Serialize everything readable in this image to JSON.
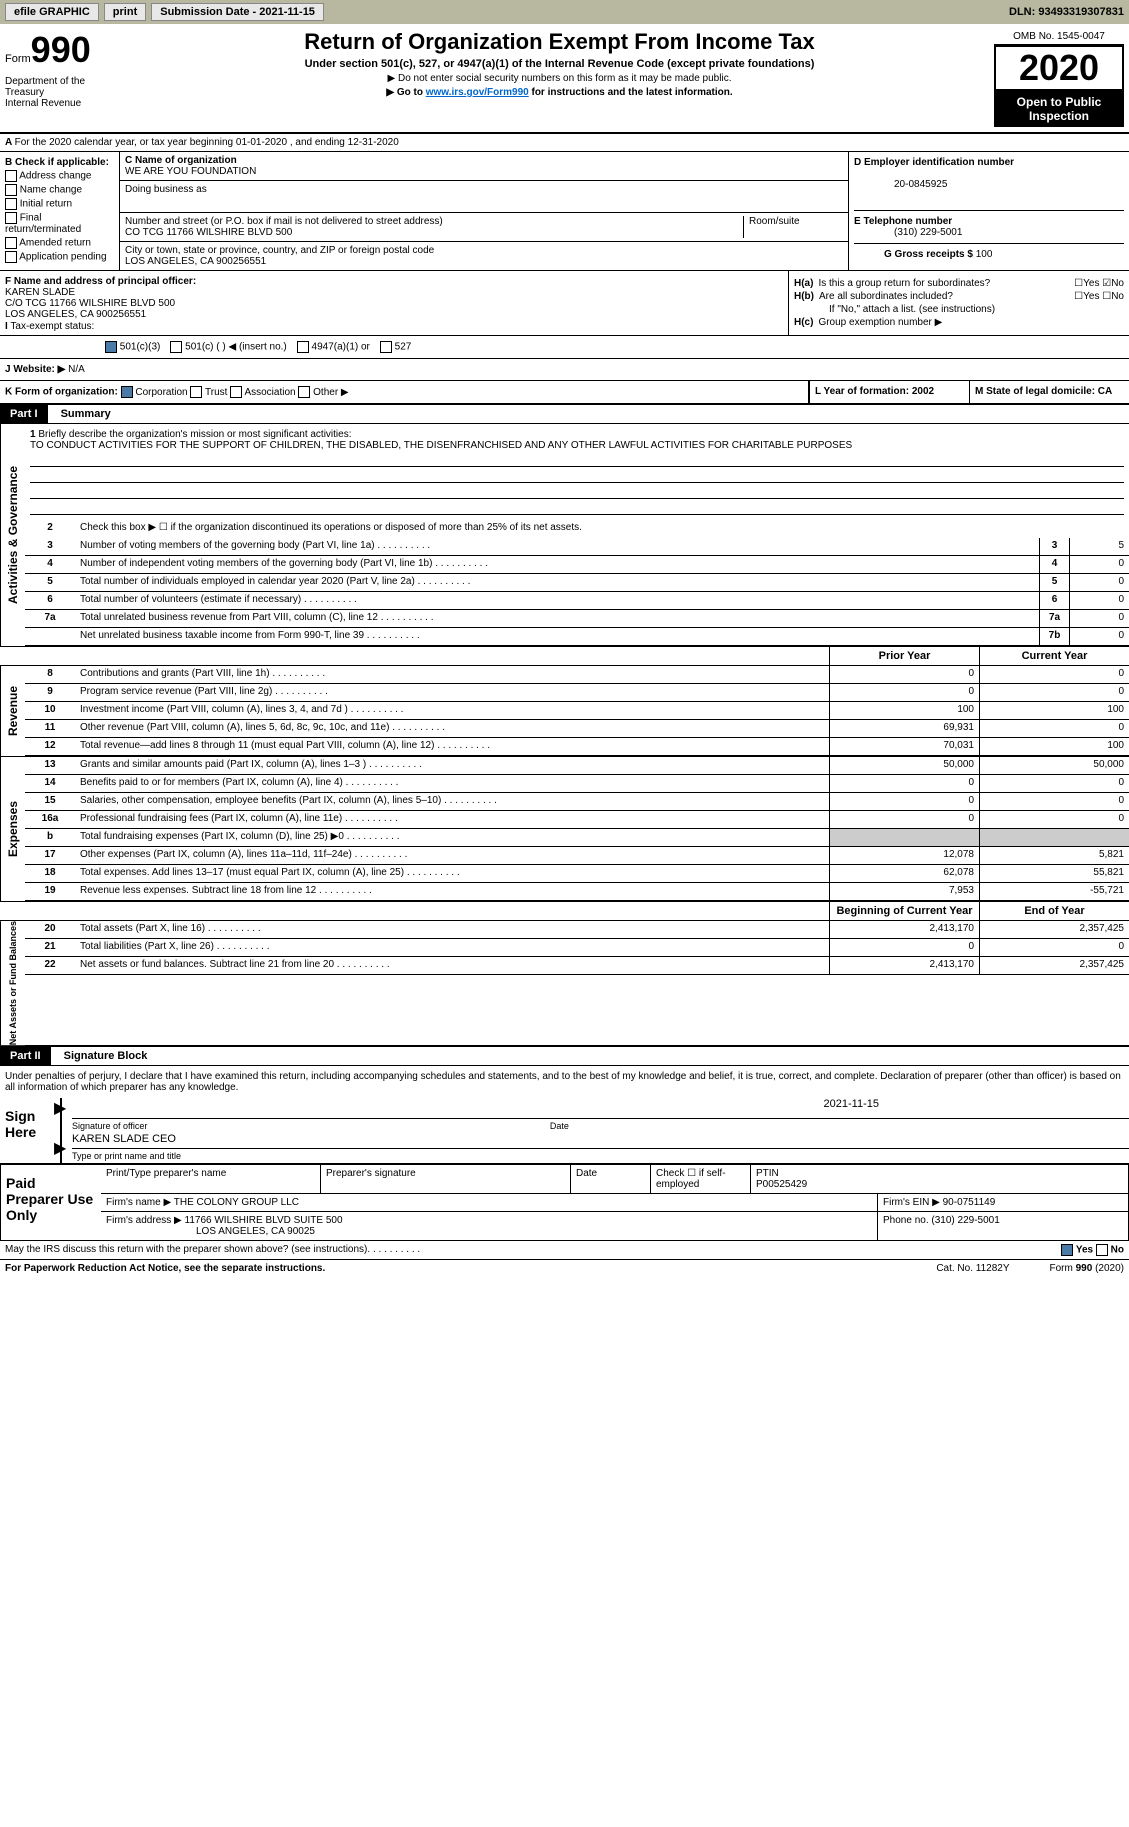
{
  "topbar": {
    "efile_label": "efile GRAPHIC",
    "print_label": "print",
    "submission_label": "Submission Date - 2021-11-15",
    "dln": "DLN: 93493319307831"
  },
  "header": {
    "form_label": "Form",
    "form_number": "990",
    "dept": "Department of the Treasury\nInternal Revenue",
    "main_title": "Return of Organization Exempt From Income Tax",
    "subtitle": "Under section 501(c), 527, or 4947(a)(1) of the Internal Revenue Code (except private foundations)",
    "subtitle2a": "▶ Do not enter social security numbers on this form as it may be made public.",
    "subtitle2b_pre": "▶ Go to ",
    "subtitle2b_link": "www.irs.gov/Form990",
    "subtitle2b_post": " for instructions and the latest information.",
    "omb": "OMB No. 1545-0047",
    "year": "2020",
    "open_public": "Open to Public Inspection"
  },
  "section_a": "For the 2020 calendar year, or tax year beginning 01-01-2020   , and ending 12-31-2020",
  "section_b": {
    "label": "B Check if applicable:",
    "opts": [
      "Address change",
      "Name change",
      "Initial return",
      "Final return/terminated",
      "Amended return",
      "Application pending"
    ]
  },
  "section_c": {
    "name_label": "C Name of organization",
    "name": "WE ARE YOU FOUNDATION",
    "dba_label": "Doing business as",
    "street_label": "Number and street (or P.O. box if mail is not delivered to street address)",
    "room_label": "Room/suite",
    "street": "CO TCG 11766 WILSHIRE BLVD 500",
    "city_label": "City or town, state or province, country, and ZIP or foreign postal code",
    "city": "LOS ANGELES, CA  900256551"
  },
  "section_d": {
    "label": "D Employer identification number",
    "value": "20-0845925"
  },
  "section_e": {
    "label": "E Telephone number",
    "value": "(310) 229-5001"
  },
  "section_g": {
    "label": "G Gross receipts $",
    "value": "100"
  },
  "section_f": {
    "label": "F  Name and address of principal officer:",
    "name": "KAREN SLADE",
    "addr1": "C/O TCG 11766 WILSHIRE BLVD 500",
    "addr2": "LOS ANGELES, CA  900256551"
  },
  "section_h": {
    "ha_label": "H(a)",
    "ha_text": "Is this a group return for subordinates?",
    "hb_label": "H(b)",
    "hb_text": "Are all subordinates included?",
    "hb_note": "If \"No,\" attach a list. (see instructions)",
    "hc_label": "H(c)",
    "hc_text": "Group exemption number ▶",
    "yes": "Yes",
    "no": "No"
  },
  "section_i": {
    "label": "I",
    "text": "Tax-exempt status:",
    "opt1": "501(c)(3)",
    "opt2": "501(c) (  ) ◀ (insert no.)",
    "opt3": "4947(a)(1) or",
    "opt4": "527"
  },
  "section_j": {
    "label": "J",
    "text": "Website: ▶",
    "value": "N/A"
  },
  "section_k": {
    "label": "K Form of organization:",
    "opts": [
      "Corporation",
      "Trust",
      "Association",
      "Other ▶"
    ]
  },
  "section_l": {
    "label": "L Year of formation: 2002"
  },
  "section_m": {
    "label": "M State of legal domicile: CA"
  },
  "part1": {
    "header": "Part I",
    "title": "Summary",
    "side1": "Activities & Governance",
    "side2": "Revenue",
    "side3": "Expenses",
    "side4": "Net Assets or Fund Balances",
    "line1_label": "1",
    "line1_text": "Briefly describe the organization's mission or most significant activities:",
    "line1_value": "TO CONDUCT ACTIVITIES FOR THE SUPPORT OF CHILDREN, THE DISABLED, THE DISENFRANCHISED AND ANY OTHER LAWFUL ACTIVITIES FOR CHARITABLE PURPOSES",
    "line2_label": "2",
    "line2_text": "Check this box ▶ ☐  if the organization discontinued its operations or disposed of more than 25% of its net assets.",
    "prior_year": "Prior Year",
    "current_year": "Current Year",
    "begin_year": "Beginning of Current Year",
    "end_year": "End of Year",
    "rows_gov": [
      {
        "n": "3",
        "t": "Number of voting members of the governing body (Part VI, line 1a)",
        "c": "3",
        "v": "5"
      },
      {
        "n": "4",
        "t": "Number of independent voting members of the governing body (Part VI, line 1b)",
        "c": "4",
        "v": "0"
      },
      {
        "n": "5",
        "t": "Total number of individuals employed in calendar year 2020 (Part V, line 2a)",
        "c": "5",
        "v": "0"
      },
      {
        "n": "6",
        "t": "Total number of volunteers (estimate if necessary)",
        "c": "6",
        "v": "0"
      },
      {
        "n": "7a",
        "t": "Total unrelated business revenue from Part VIII, column (C), line 12",
        "c": "7a",
        "v": "0"
      },
      {
        "n": "",
        "t": "Net unrelated business taxable income from Form 990-T, line 39",
        "c": "7b",
        "v": "0"
      }
    ],
    "rows_rev": [
      {
        "n": "8",
        "t": "Contributions and grants (Part VIII, line 1h)",
        "p": "0",
        "c": "0"
      },
      {
        "n": "9",
        "t": "Program service revenue (Part VIII, line 2g)",
        "p": "0",
        "c": "0"
      },
      {
        "n": "10",
        "t": "Investment income (Part VIII, column (A), lines 3, 4, and 7d )",
        "p": "100",
        "c": "100"
      },
      {
        "n": "11",
        "t": "Other revenue (Part VIII, column (A), lines 5, 6d, 8c, 9c, 10c, and 11e)",
        "p": "69,931",
        "c": "0"
      },
      {
        "n": "12",
        "t": "Total revenue—add lines 8 through 11 (must equal Part VIII, column (A), line 12)",
        "p": "70,031",
        "c": "100"
      }
    ],
    "rows_exp": [
      {
        "n": "13",
        "t": "Grants and similar amounts paid (Part IX, column (A), lines 1–3 )",
        "p": "50,000",
        "c": "50,000"
      },
      {
        "n": "14",
        "t": "Benefits paid to or for members (Part IX, column (A), line 4)",
        "p": "0",
        "c": "0"
      },
      {
        "n": "15",
        "t": "Salaries, other compensation, employee benefits (Part IX, column (A), lines 5–10)",
        "p": "0",
        "c": "0"
      },
      {
        "n": "16a",
        "t": "Professional fundraising fees (Part IX, column (A), line 11e)",
        "p": "0",
        "c": "0"
      },
      {
        "n": "b",
        "t": "Total fundraising expenses (Part IX, column (D), line 25) ▶0",
        "p": "",
        "c": "",
        "gray": true
      },
      {
        "n": "17",
        "t": "Other expenses (Part IX, column (A), lines 11a–11d, 11f–24e)",
        "p": "12,078",
        "c": "5,821"
      },
      {
        "n": "18",
        "t": "Total expenses. Add lines 13–17 (must equal Part IX, column (A), line 25)",
        "p": "62,078",
        "c": "55,821"
      },
      {
        "n": "19",
        "t": "Revenue less expenses. Subtract line 18 from line 12",
        "p": "7,953",
        "c": "-55,721"
      }
    ],
    "rows_net": [
      {
        "n": "20",
        "t": "Total assets (Part X, line 16)",
        "p": "2,413,170",
        "c": "2,357,425"
      },
      {
        "n": "21",
        "t": "Total liabilities (Part X, line 26)",
        "p": "0",
        "c": "0"
      },
      {
        "n": "22",
        "t": "Net assets or fund balances. Subtract line 21 from line 20",
        "p": "2,413,170",
        "c": "2,357,425"
      }
    ]
  },
  "part2": {
    "header": "Part II",
    "title": "Signature Block",
    "declaration": "Under penalties of perjury, I declare that I have examined this return, including accompanying schedules and statements, and to the best of my knowledge and belief, it is true, correct, and complete. Declaration of preparer (other than officer) is based on all information of which preparer has any knowledge."
  },
  "sign": {
    "label": "Sign Here",
    "sig_officer": "Signature of officer",
    "date_label": "Date",
    "date": "2021-11-15",
    "name": "KAREN SLADE CEO",
    "type_label": "Type or print name and title"
  },
  "preparer": {
    "label": "Paid Preparer Use Only",
    "col1": "Print/Type preparer's name",
    "col2": "Preparer's signature",
    "col3": "Date",
    "col4": "Check ☐ if self-employed",
    "col5_label": "PTIN",
    "col5": "P00525429",
    "firm_name_label": "Firm's name     ▶",
    "firm_name": "THE COLONY GROUP LLC",
    "firm_ein_label": "Firm's EIN ▶",
    "firm_ein": "90-0751149",
    "firm_addr_label": "Firm's address ▶",
    "firm_addr1": "11766 WILSHIRE BLVD SUITE 500",
    "firm_addr2": "LOS ANGELES, CA  90025",
    "phone_label": "Phone no.",
    "phone": "(310) 229-5001"
  },
  "footer": {
    "discuss": "May the IRS discuss this return with the preparer shown above? (see instructions)",
    "yes": "Yes",
    "no": "No",
    "paperwork": "For Paperwork Reduction Act Notice, see the separate instructions.",
    "cat": "Cat. No. 11282Y",
    "form": "Form 990 (2020)"
  }
}
